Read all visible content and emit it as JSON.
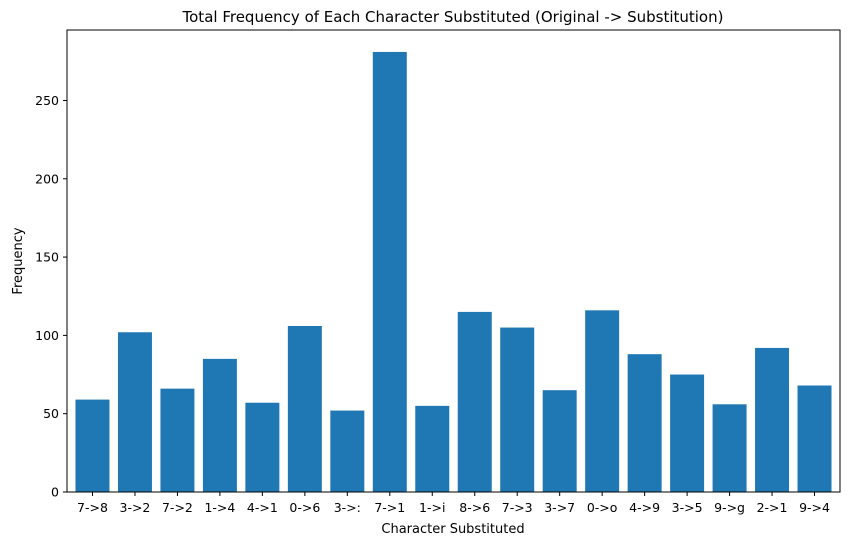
{
  "chart_data": {
    "type": "bar",
    "title": "Total Frequency of Each Character Substituted (Original -> Substitution)",
    "xlabel": "Character Substituted",
    "ylabel": "Frequency",
    "categories": [
      "7->8",
      "3->2",
      "7->2",
      "1->4",
      "4->1",
      "0->6",
      "3->:",
      "7->1",
      "1->i",
      "8->6",
      "7->3",
      "3->7",
      "0->o",
      "4->9",
      "3->5",
      "9->g",
      "2->1",
      "9->4"
    ],
    "values": [
      59,
      102,
      66,
      85,
      57,
      106,
      52,
      281,
      55,
      115,
      105,
      65,
      116,
      88,
      75,
      56,
      92,
      68
    ],
    "ylim": [
      0,
      295
    ],
    "yticks": [
      0,
      50,
      100,
      150,
      200,
      250
    ],
    "grid": false,
    "legend": "none",
    "bar_color": "#1f77b4"
  }
}
